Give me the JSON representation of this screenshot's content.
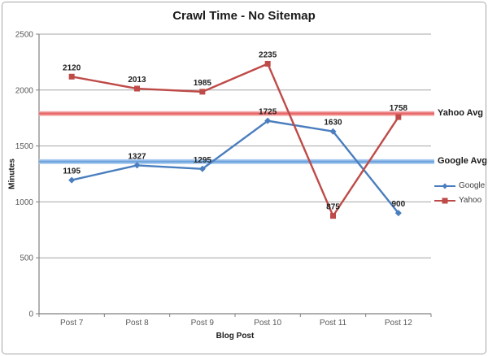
{
  "window": {
    "background": "#ffffff",
    "border_color": "#a6a6a6"
  },
  "colors": {
    "gridline": "#a6a6a6",
    "axis": "#808080",
    "tick_label": "#595959",
    "data_label": "#1f1f1f",
    "legend_text": "#404040",
    "title_text": "#1a1a1a"
  },
  "chart_data": {
    "type": "line",
    "title": "Crawl Time - No Sitemap",
    "xlabel": "Blog Post",
    "ylabel": "Minutes",
    "categories": [
      "Post 7",
      "Post 8",
      "Post 9",
      "Post 10",
      "Post 11",
      "Post 12"
    ],
    "y_ticks": [
      0,
      500,
      1000,
      1500,
      2000,
      2500
    ],
    "ylim": [
      0,
      2500
    ],
    "grid": true,
    "legend_position": "right",
    "series": [
      {
        "name": "Google",
        "color": "#4a7ebe",
        "marker": "diamond",
        "values": [
          1195,
          1327,
          1295,
          1725,
          1630,
          900
        ]
      },
      {
        "name": "Yahoo",
        "color": "#be4b48",
        "marker": "square",
        "values": [
          2120,
          2013,
          1985,
          2235,
          875,
          1758
        ]
      }
    ],
    "reference_lines": [
      {
        "label": "Yahoo Avg",
        "value": 1790,
        "color": "#e8696b",
        "halo": "#f5adac"
      },
      {
        "label": "Google Avg",
        "value": 1360,
        "color": "#6ea4de",
        "halo": "#abcbef"
      }
    ]
  }
}
